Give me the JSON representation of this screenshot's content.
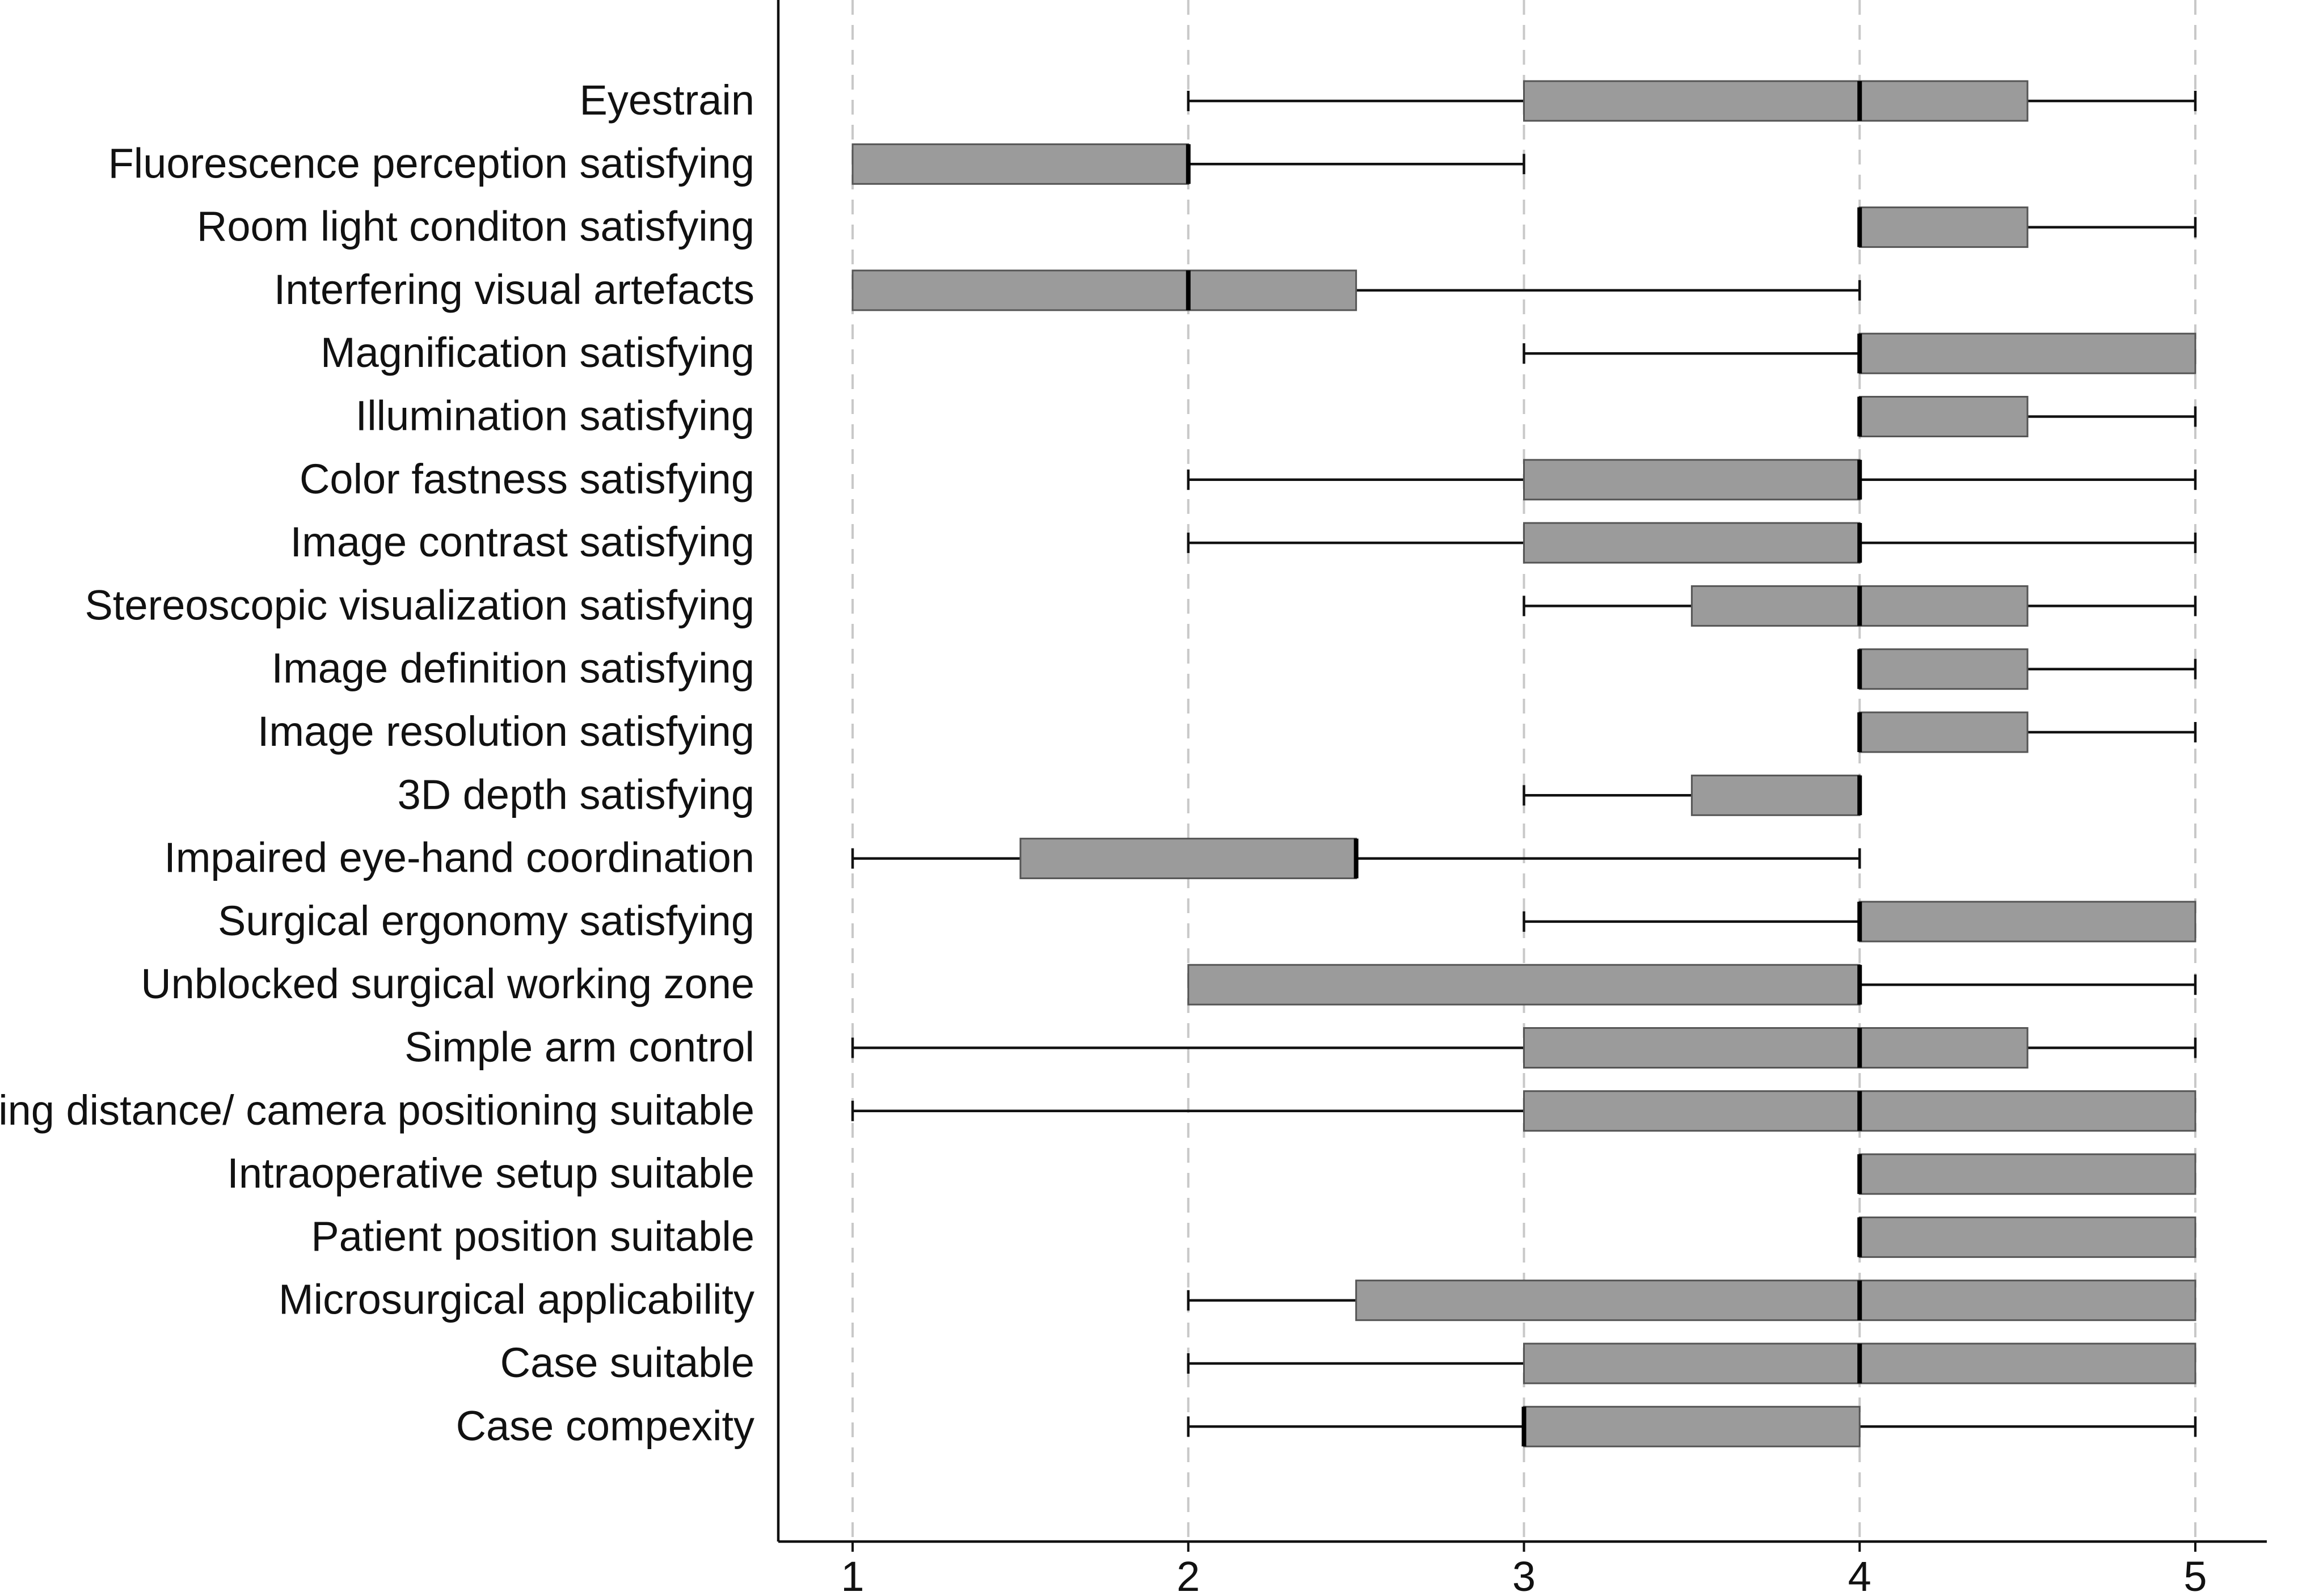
{
  "chart_data": {
    "type": "boxplot",
    "orientation": "horizontal",
    "xlim": [
      1,
      5
    ],
    "xticks": [
      "1",
      "2",
      "3",
      "4",
      "5"
    ],
    "grid": "vertical dashed at ticks",
    "items": [
      {
        "label": "Eyestrain",
        "min": 2,
        "q1": 3,
        "median": 4,
        "q3": 4.5,
        "max": 5
      },
      {
        "label": "Fluorescence perception satisfying",
        "min": 1,
        "q1": 1,
        "median": 2,
        "q3": 2,
        "max": 3
      },
      {
        "label": "Room light conditon satisfying",
        "min": 4,
        "q1": 4,
        "median": 4,
        "q3": 4.5,
        "max": 5
      },
      {
        "label": "Interfering visual artefacts",
        "min": 1,
        "q1": 1,
        "median": 2,
        "q3": 2.5,
        "max": 4
      },
      {
        "label": "Magnification satisfying",
        "min": 3,
        "q1": 4,
        "median": 4,
        "q3": 5,
        "max": 5
      },
      {
        "label": "Illumination satisfying",
        "min": 4,
        "q1": 4,
        "median": 4,
        "q3": 4.5,
        "max": 5
      },
      {
        "label": "Color fastness satisfying",
        "min": 2,
        "q1": 3,
        "median": 4,
        "q3": 4,
        "max": 5
      },
      {
        "label": "Image contrast satisfying",
        "min": 2,
        "q1": 3,
        "median": 4,
        "q3": 4,
        "max": 5
      },
      {
        "label": "Stereoscopic visualization satisfying",
        "min": 3,
        "q1": 3.5,
        "median": 4,
        "q3": 4.5,
        "max": 5
      },
      {
        "label": "Image definition satisfying",
        "min": 4,
        "q1": 4,
        "median": 4,
        "q3": 4.5,
        "max": 5
      },
      {
        "label": "Image resolution satisfying",
        "min": 4,
        "q1": 4,
        "median": 4,
        "q3": 4.5,
        "max": 5
      },
      {
        "label": "3D depth satisfying",
        "min": 3,
        "q1": 3.5,
        "median": 4,
        "q3": 4,
        "max": 4
      },
      {
        "label": "Impaired eye-hand coordination",
        "min": 1,
        "q1": 1.5,
        "median": 2.5,
        "q3": 2.5,
        "max": 4
      },
      {
        "label": "Surgical ergonomy satisfying",
        "min": 3,
        "q1": 4,
        "median": 4,
        "q3": 5,
        "max": 5
      },
      {
        "label": "Unblocked surgical working zone",
        "min": 2,
        "q1": 2,
        "median": 4,
        "q3": 4,
        "max": 5
      },
      {
        "label": "Simple arm control",
        "min": 1,
        "q1": 3,
        "median": 4,
        "q3": 4.5,
        "max": 5
      },
      {
        "label": "Working distance/ camera positioning suitable",
        "min": 1,
        "q1": 3,
        "median": 4,
        "q3": 5,
        "max": 5
      },
      {
        "label": "Intraoperative setup suitable",
        "min": 4,
        "q1": 4,
        "median": 4,
        "q3": 5,
        "max": 5
      },
      {
        "label": "Patient position suitable",
        "min": 4,
        "q1": 4,
        "median": 4,
        "q3": 5,
        "max": 5
      },
      {
        "label": "Microsurgical applicability",
        "min": 2,
        "q1": 2.5,
        "median": 4,
        "q3": 5,
        "max": 5
      },
      {
        "label": "Case suitable",
        "min": 2,
        "q1": 3,
        "median": 4,
        "q3": 5,
        "max": 5
      },
      {
        "label": "Case compexity",
        "min": 2,
        "q1": 3,
        "median": 3,
        "q3": 4,
        "max": 5
      }
    ]
  }
}
